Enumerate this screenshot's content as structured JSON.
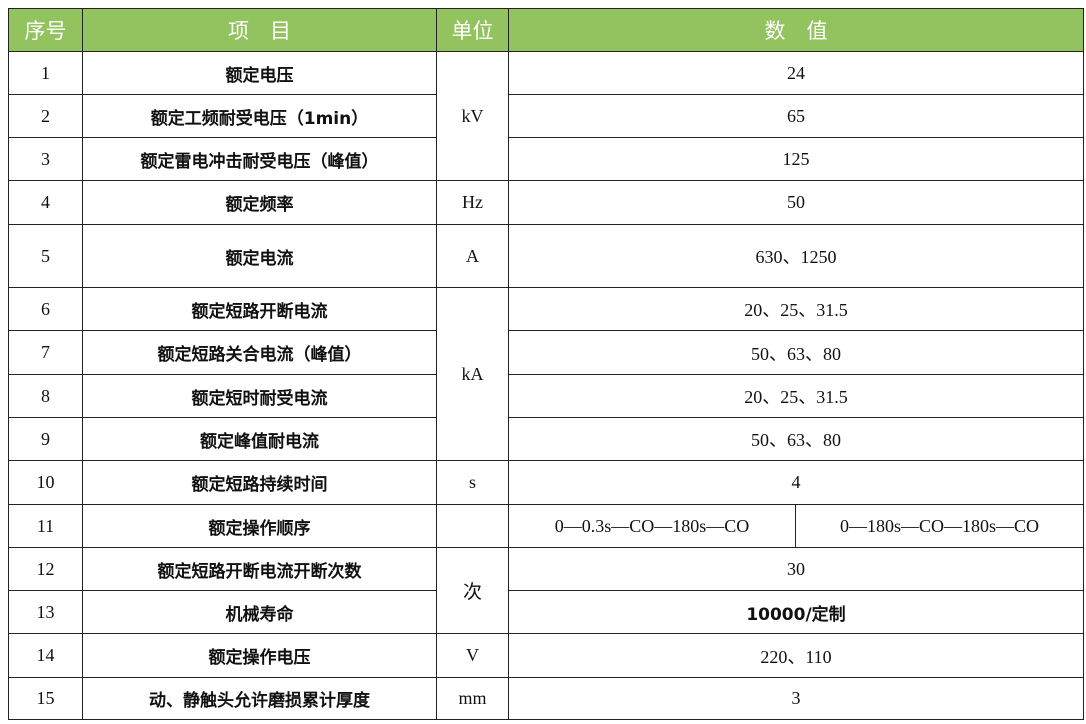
{
  "header": {
    "no": "序号",
    "item": "项　目",
    "unit": "单位",
    "value": "数　值"
  },
  "colors": {
    "header_bg": "#92c35f",
    "header_text": "#ffffff",
    "border": "#222222"
  },
  "rows": [
    {
      "no": "1",
      "item": "额定电压",
      "unit": "kV",
      "value": "24"
    },
    {
      "no": "2",
      "item": "额定工频耐受电压（1min）",
      "value": "65"
    },
    {
      "no": "3",
      "item": "额定雷电冲击耐受电压（峰值）",
      "value": "125"
    },
    {
      "no": "4",
      "item": "额定频率",
      "unit": "Hz",
      "value": "50"
    },
    {
      "no": "5",
      "item": "额定电流",
      "unit": "A",
      "value": "630、1250"
    },
    {
      "no": "6",
      "item": "额定短路开断电流",
      "unit": "kA",
      "value": "20、25、31.5"
    },
    {
      "no": "7",
      "item": "额定短路关合电流（峰值）",
      "value": "50、63、80"
    },
    {
      "no": "8",
      "item": "额定短时耐受电流",
      "value": "20、25、31.5"
    },
    {
      "no": "9",
      "item": "额定峰值耐电流",
      "value": "50、63、80"
    },
    {
      "no": "10",
      "item": "额定短路持续时间",
      "unit": "s",
      "value": "4"
    },
    {
      "no": "11",
      "item": "额定操作顺序",
      "unit": "",
      "value_a": "0—0.3s—CO—180s—CO",
      "value_b": "0—180s—CO—180s—CO"
    },
    {
      "no": "12",
      "item": "额定短路开断电流开断次数",
      "unit": "次",
      "value": "30"
    },
    {
      "no": "13",
      "item": "机械寿命",
      "value": "10000/定制"
    },
    {
      "no": "14",
      "item": "额定操作电压",
      "unit": "V",
      "value": "220、110"
    },
    {
      "no": "15",
      "item": "动、静触头允许磨损累计厚度",
      "unit": "mm",
      "value": "3"
    }
  ]
}
